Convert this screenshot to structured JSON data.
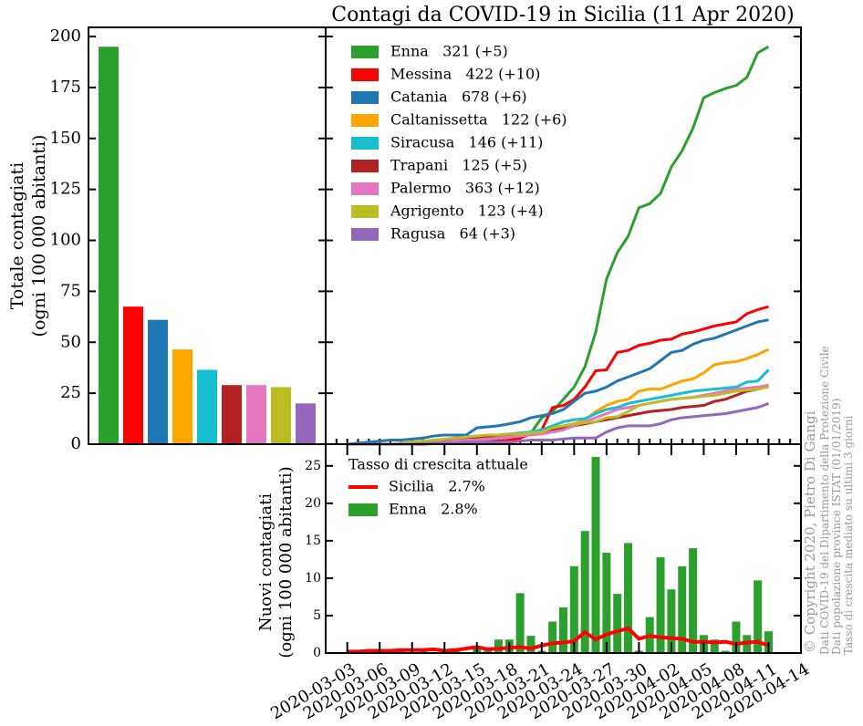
{
  "chart_data": [
    {
      "type": "bar",
      "ylabel": [
        "Totale contagiati",
        "(ogni 100 000 abitanti)"
      ],
      "categories": [
        null,
        null,
        null,
        null,
        null,
        null,
        null,
        null,
        null
      ],
      "values": [
        195,
        67.5,
        61,
        46.5,
        36.5,
        29,
        29,
        28,
        20
      ],
      "colors": [
        "#2ca02c",
        "#ff0000",
        "#1f77b4",
        "#ffa500",
        "#17becf",
        "#b22222",
        "#e377c2",
        "#bcbd22",
        "#9467bd"
      ],
      "ylim": [
        0,
        204.5
      ],
      "yticks": [
        0,
        25,
        50,
        75,
        100,
        125,
        150,
        175,
        200
      ]
    },
    {
      "type": "line",
      "title": "Contagi da COVID-19 in Sicilia (11 Apr 2020)",
      "x": [
        "2020-03-03",
        "2020-03-04",
        "2020-03-05",
        "2020-03-06",
        "2020-03-07",
        "2020-03-08",
        "2020-03-09",
        "2020-03-10",
        "2020-03-11",
        "2020-03-12",
        "2020-03-13",
        "2020-03-14",
        "2020-03-15",
        "2020-03-16",
        "2020-03-17",
        "2020-03-18",
        "2020-03-19",
        "2020-03-20",
        "2020-03-21",
        "2020-03-22",
        "2020-03-23",
        "2020-03-24",
        "2020-03-25",
        "2020-03-26",
        "2020-03-27",
        "2020-03-28",
        "2020-03-29",
        "2020-03-30",
        "2020-03-31",
        "2020-04-01",
        "2020-04-02",
        "2020-04-03",
        "2020-04-04",
        "2020-04-05",
        "2020-04-06",
        "2020-04-07",
        "2020-04-08",
        "2020-04-09",
        "2020-04-10",
        "2020-04-11"
      ],
      "xlim": [
        "2020-03-01",
        "2020-04-14"
      ],
      "ylim": [
        0,
        204.5
      ],
      "yticks": [
        0,
        25,
        50,
        75,
        100,
        125,
        150,
        175,
        200
      ],
      "series": [
        {
          "name": "Enna   321 (+5)",
          "color": "#2ca02c",
          "values": [
            0,
            0,
            0,
            0,
            0,
            0,
            0,
            0.6,
            0.6,
            1,
            1,
            1.5,
            1.5,
            2,
            3,
            3.5,
            4.5,
            5.5,
            13,
            16,
            22,
            28,
            38,
            55,
            81,
            94,
            102,
            116,
            118,
            123,
            136,
            144,
            155,
            170,
            172.5,
            174.5,
            176,
            180,
            192,
            195
          ]
        },
        {
          "name": "Messina   422 (+10)",
          "color": "#ff0000",
          "values": [
            0,
            0,
            0,
            0,
            0,
            0,
            0,
            0,
            0.3,
            0.3,
            0.5,
            0.5,
            1,
            1,
            1.5,
            2,
            3,
            5,
            7,
            18,
            19,
            22,
            28,
            36,
            36.5,
            45,
            46,
            48.5,
            49.5,
            51,
            51.5,
            54,
            55,
            56.5,
            58,
            59,
            60,
            64,
            66,
            67.5
          ]
        },
        {
          "name": "Catania   678 (+6)",
          "color": "#1f77b4",
          "values": [
            0,
            0.5,
            1,
            1.5,
            2,
            2,
            2.5,
            3,
            4,
            4.5,
            4.5,
            4.5,
            8,
            8.5,
            9,
            10,
            11,
            13,
            14,
            15,
            17,
            21,
            25,
            26,
            28,
            31,
            33,
            35,
            37,
            41,
            45,
            46,
            49,
            51,
            52,
            54,
            56,
            58,
            60,
            61
          ]
        },
        {
          "name": "Caltanissetta   122 (+6)",
          "color": "#ffa500",
          "values": [
            0,
            0,
            0,
            0,
            0,
            0.5,
            1,
            1,
            1.5,
            2,
            2.5,
            3,
            3,
            3.5,
            4,
            4.5,
            5,
            6,
            7,
            8,
            9,
            10,
            12,
            16,
            19,
            21,
            22,
            26,
            27,
            27,
            29,
            31,
            32,
            35,
            39,
            40,
            40.5,
            42,
            44,
            46.5
          ]
        },
        {
          "name": "Siracusa   146 (+11)",
          "color": "#17becf",
          "values": [
            0,
            0,
            0,
            0,
            0,
            0,
            0.5,
            1,
            1,
            2,
            3,
            3.5,
            4,
            4,
            4.5,
            5,
            5.5,
            6,
            7,
            9,
            11,
            12,
            12.5,
            15,
            17,
            18,
            20,
            21,
            22,
            23,
            24,
            25,
            26,
            26.5,
            27,
            27.5,
            28,
            30.5,
            31,
            36.5
          ]
        },
        {
          "name": "Trapani   125 (+5)",
          "color": "#b22222",
          "values": [
            0,
            0,
            0,
            0,
            0,
            0,
            0.5,
            1,
            1.5,
            2,
            3,
            3,
            3.5,
            4,
            4,
            4,
            4.5,
            5,
            6,
            7,
            8,
            9,
            10,
            11,
            12,
            13,
            14,
            15,
            16,
            16.5,
            17,
            18,
            18.5,
            19,
            21,
            22,
            24,
            26,
            27,
            29
          ]
        },
        {
          "name": "Palermo   363 (+12)",
          "color": "#e377c2",
          "values": [
            0,
            0,
            0,
            0,
            0,
            0,
            0.3,
            0.5,
            1,
            1,
            1.5,
            2,
            2,
            2.5,
            3,
            3.5,
            4,
            4.5,
            5,
            6,
            7,
            9,
            11,
            13,
            15,
            17,
            18,
            19,
            20,
            21,
            22,
            22.5,
            23,
            24,
            25,
            26,
            27,
            27.5,
            28,
            29
          ]
        },
        {
          "name": "Agrigento   123 (+4)",
          "color": "#bcbd22",
          "values": [
            0,
            0,
            0,
            0,
            0,
            0.5,
            1,
            1.5,
            2,
            2.5,
            3,
            3.5,
            4,
            4.5,
            4.5,
            5,
            5,
            5.5,
            6,
            8,
            9,
            10,
            10.5,
            11,
            13,
            13.5,
            16,
            19,
            20,
            21,
            22,
            22.5,
            23,
            23.5,
            24,
            25,
            26,
            26.5,
            27,
            28
          ]
        },
        {
          "name": "Ragusa   64 (+3)",
          "color": "#9467bd",
          "values": [
            0,
            0,
            0,
            0,
            0,
            0,
            0,
            0.3,
            0.5,
            0.5,
            0.5,
            1,
            1,
            1,
            1,
            1,
            1.5,
            2,
            2,
            2,
            2.5,
            3,
            3,
            3,
            6,
            8,
            9,
            9,
            9,
            10,
            12,
            13,
            13.5,
            14,
            14.5,
            15,
            16,
            17,
            18,
            20
          ]
        }
      ]
    },
    {
      "type": "combo",
      "ylabel": [
        "Nuovi contagiati",
        "(ogni 100 000 abitanti)"
      ],
      "legend_title": "Tasso di crescita attuale",
      "x": [
        "2020-03-03",
        "2020-03-04",
        "2020-03-05",
        "2020-03-06",
        "2020-03-07",
        "2020-03-08",
        "2020-03-09",
        "2020-03-10",
        "2020-03-11",
        "2020-03-12",
        "2020-03-13",
        "2020-03-14",
        "2020-03-15",
        "2020-03-16",
        "2020-03-17",
        "2020-03-18",
        "2020-03-19",
        "2020-03-20",
        "2020-03-21",
        "2020-03-22",
        "2020-03-23",
        "2020-03-24",
        "2020-03-25",
        "2020-03-26",
        "2020-03-27",
        "2020-03-28",
        "2020-03-29",
        "2020-03-30",
        "2020-03-31",
        "2020-04-01",
        "2020-04-02",
        "2020-04-03",
        "2020-04-04",
        "2020-04-05",
        "2020-04-06",
        "2020-04-07",
        "2020-04-08",
        "2020-04-09",
        "2020-04-10",
        "2020-04-11"
      ],
      "xlim": [
        "2020-03-01",
        "2020-04-14"
      ],
      "xticks": [
        "2020-03-03",
        "2020-03-06",
        "2020-03-09",
        "2020-03-12",
        "2020-03-15",
        "2020-03-18",
        "2020-03-21",
        "2020-03-24",
        "2020-03-27",
        "2020-03-30",
        "2020-04-02",
        "2020-04-05",
        "2020-04-08",
        "2020-04-11",
        "2020-04-14"
      ],
      "ylim": [
        0,
        27.9
      ],
      "yticks": [
        0,
        5,
        10,
        15,
        20,
        25
      ],
      "series": [
        {
          "name": "Sicilia   2.7%",
          "type": "line",
          "color": "#ff0000",
          "values": [
            0.2,
            0.2,
            0.3,
            0.3,
            0.3,
            0.4,
            0.4,
            0.4,
            0.5,
            0.3,
            0.4,
            0.6,
            0.8,
            0.5,
            0.6,
            0.7,
            0.8,
            0.6,
            1.0,
            1.3,
            1.4,
            1.6,
            2.8,
            1.8,
            2.5,
            2.9,
            3.3,
            1.9,
            2.3,
            2.1,
            2.0,
            1.9,
            1.5,
            1.5,
            1.4,
            1.5,
            1.2,
            1.4,
            1.5,
            1.0
          ]
        },
        {
          "name": "Enna   2.8%",
          "type": "bar",
          "color": "#2ca02c",
          "values": [
            0,
            0.3,
            0,
            0,
            0.3,
            0.3,
            0,
            0.6,
            0,
            0,
            0.3,
            0,
            0.6,
            0.3,
            1.8,
            1.8,
            8.0,
            2.3,
            0.3,
            4.2,
            6.1,
            11.6,
            16.3,
            26.2,
            13.4,
            7.9,
            14.7,
            0.3,
            4.8,
            12.8,
            8.5,
            11.6,
            14.0,
            2.4,
            1.8,
            0.3,
            4.2,
            2.4,
            9.7,
            2.9
          ]
        }
      ]
    }
  ],
  "side_text": {
    "copyright": "© Copyright 2020, Pietro Di Gangi",
    "sources": [
      "Dati COVID-19 del Dipartimento della Protezione Civile",
      "Dati popolazione province ISTAT (01/01/2019)",
      "Tasso di crescita mediato su ultimi 3 giorni"
    ]
  }
}
